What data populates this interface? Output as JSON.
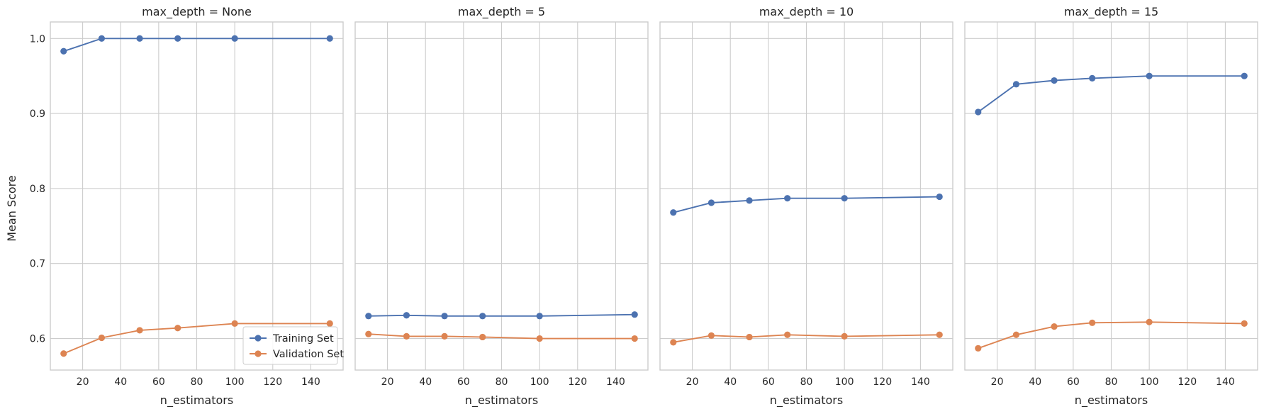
{
  "chart_data": {
    "type": "line",
    "ylabel": "Mean Score",
    "ylim": [
      0.558,
      1.022
    ],
    "yticks": [
      0.6,
      0.7,
      0.8,
      0.9,
      1.0
    ],
    "ytick_labels": [
      "0.6",
      "0.7",
      "0.8",
      "0.9",
      "1.0"
    ],
    "xlim": [
      3,
      157
    ],
    "xticks": [
      20,
      40,
      60,
      80,
      100,
      120,
      140
    ],
    "xtick_labels": [
      "20",
      "40",
      "60",
      "80",
      "100",
      "120",
      "140"
    ],
    "grid": true,
    "legend": {
      "placement": "lower-right",
      "panel": 0,
      "entries": [
        "Training Set",
        "Validation Set"
      ]
    },
    "series_colors": {
      "Training Set": "#4c72b0",
      "Validation Set": "#dd8452"
    },
    "panels": [
      {
        "title": "max_depth = None",
        "xlabel": "n_estimators",
        "x": [
          10,
          30,
          50,
          70,
          100,
          150
        ],
        "series": [
          {
            "name": "Training Set",
            "values": [
              0.983,
              1.0,
              1.0,
              1.0,
              1.0,
              1.0
            ]
          },
          {
            "name": "Validation Set",
            "values": [
              0.58,
              0.601,
              0.611,
              0.614,
              0.62,
              0.62
            ]
          }
        ]
      },
      {
        "title": "max_depth = 5",
        "xlabel": "n_estimators",
        "x": [
          10,
          30,
          50,
          70,
          100,
          150
        ],
        "series": [
          {
            "name": "Training Set",
            "values": [
              0.63,
              0.631,
              0.63,
              0.63,
              0.63,
              0.632
            ]
          },
          {
            "name": "Validation Set",
            "values": [
              0.606,
              0.603,
              0.603,
              0.602,
              0.6,
              0.6
            ]
          }
        ]
      },
      {
        "title": "max_depth = 10",
        "xlabel": "n_estimators",
        "x": [
          10,
          30,
          50,
          70,
          100,
          150
        ],
        "series": [
          {
            "name": "Training Set",
            "values": [
              0.768,
              0.781,
              0.784,
              0.787,
              0.787,
              0.789
            ]
          },
          {
            "name": "Validation Set",
            "values": [
              0.595,
              0.604,
              0.602,
              0.605,
              0.603,
              0.605
            ]
          }
        ]
      },
      {
        "title": "max_depth = 15",
        "xlabel": "n_estimators",
        "x": [
          10,
          30,
          50,
          70,
          100,
          150
        ],
        "series": [
          {
            "name": "Training Set",
            "values": [
              0.902,
              0.939,
              0.944,
              0.947,
              0.95,
              0.95
            ]
          },
          {
            "name": "Validation Set",
            "values": [
              0.587,
              0.605,
              0.616,
              0.621,
              0.622,
              0.62
            ]
          }
        ]
      }
    ]
  }
}
